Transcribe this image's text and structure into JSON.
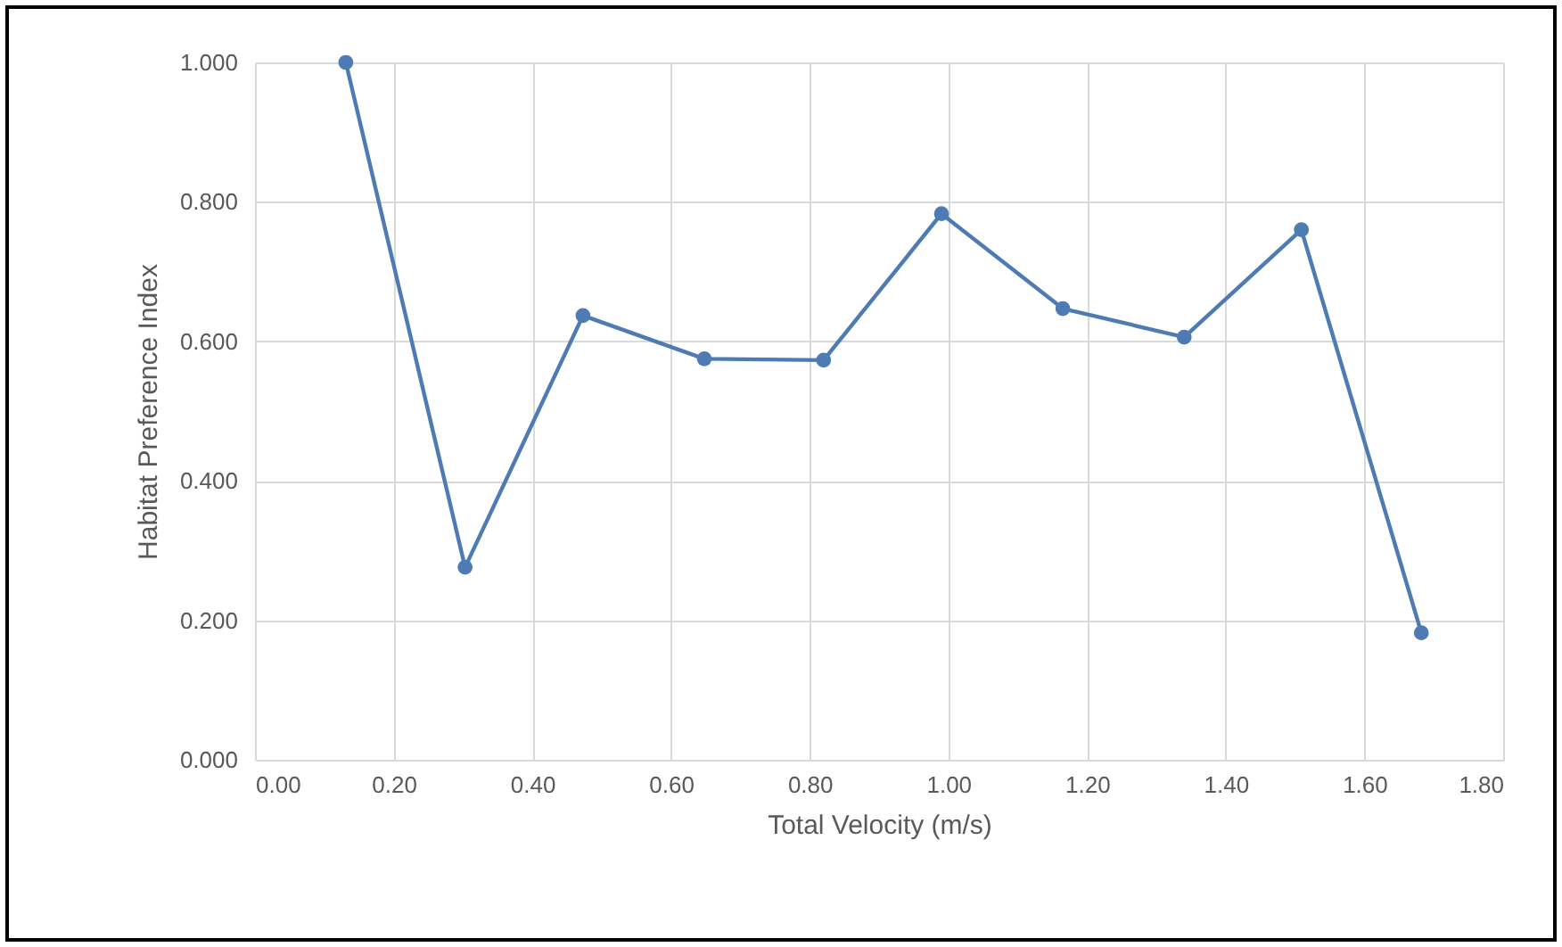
{
  "chart_data": {
    "type": "line",
    "xlabel": "Total Velocity (m/s)",
    "ylabel": "Habitat Preference Index",
    "x": [
      0.131,
      0.303,
      0.473,
      0.648,
      0.82,
      0.99,
      1.165,
      1.34,
      1.509,
      1.682
    ],
    "series": [
      {
        "color": "#4f7bb5",
        "values": [
          1.0,
          0.276,
          0.637,
          0.575,
          0.573,
          0.783,
          0.647,
          0.606,
          0.76,
          0.182
        ]
      }
    ],
    "xlim": [
      0,
      1.8
    ],
    "xticks": [
      {
        "value": 0,
        "label": "0.00"
      },
      {
        "value": 0.2,
        "label": "0.20"
      },
      {
        "value": 0.4,
        "label": "0.40"
      },
      {
        "value": 0.6,
        "label": "0.60"
      },
      {
        "value": 0.8,
        "label": "0.80"
      },
      {
        "value": 1,
        "label": "1.00"
      },
      {
        "value": 1.2,
        "label": "1.20"
      },
      {
        "value": 1.4,
        "label": "1.40"
      },
      {
        "value": 1.6,
        "label": "1.60"
      },
      {
        "value": 1.8,
        "label": "1.80"
      }
    ],
    "ylim": [
      0,
      1
    ],
    "yticks": [
      {
        "value": 0,
        "label": "0.000"
      },
      {
        "value": 0.2,
        "label": "0.200"
      },
      {
        "value": 0.4,
        "label": "0.400"
      },
      {
        "value": 0.6,
        "label": "0.600"
      },
      {
        "value": 0.8,
        "label": "0.800"
      },
      {
        "value": 1,
        "label": "1.000"
      }
    ],
    "grid": true,
    "marker": "circle",
    "line_style": "solid"
  }
}
